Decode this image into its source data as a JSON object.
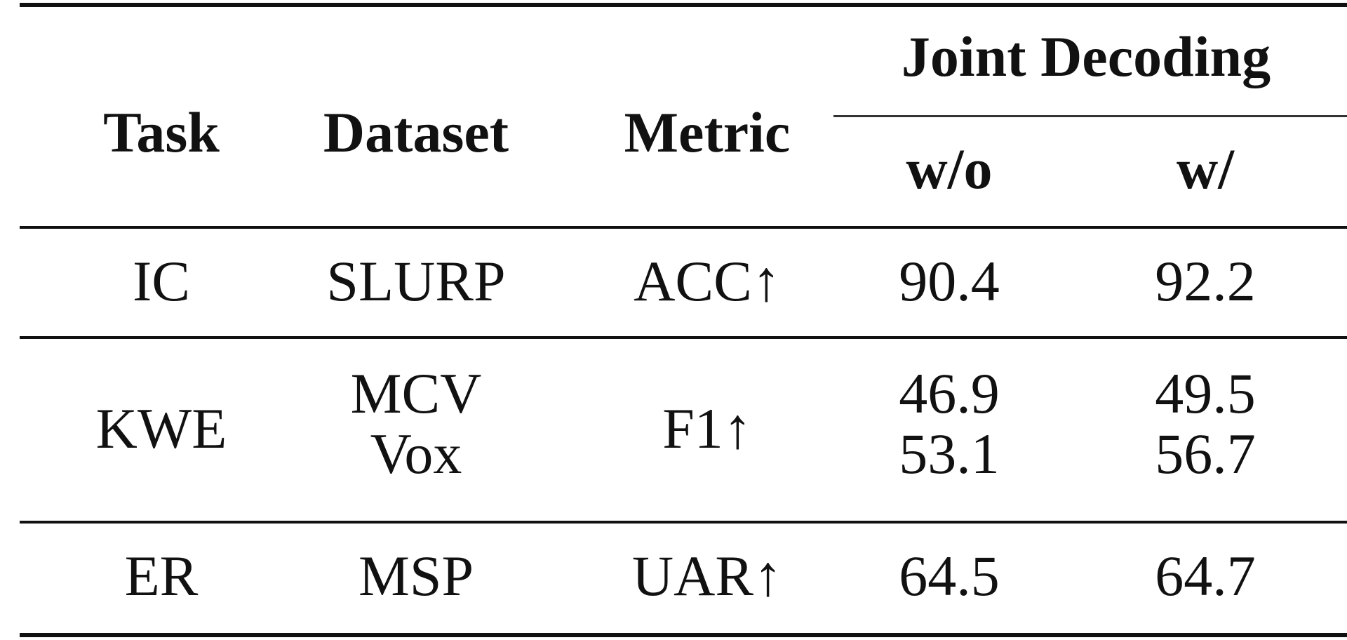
{
  "table": {
    "headers": {
      "task": "Task",
      "dataset": "Dataset",
      "metric": "Metric",
      "joint_decoding": "Joint Decoding",
      "without": "w/o",
      "with": "w/"
    },
    "rows": [
      {
        "task": "IC",
        "datasets": [
          "SLURP"
        ],
        "metric": "ACC↑",
        "without": [
          "90.4"
        ],
        "with": [
          "92.2"
        ]
      },
      {
        "task": "KWE",
        "datasets": [
          "MCV",
          "Vox"
        ],
        "metric": "F1↑",
        "without": [
          "46.9",
          "53.1"
        ],
        "with": [
          "49.5",
          "56.7"
        ]
      },
      {
        "task": "ER",
        "datasets": [
          "MSP"
        ],
        "metric": "UAR↑",
        "without": [
          "64.5"
        ],
        "with": [
          "64.7"
        ]
      }
    ]
  }
}
